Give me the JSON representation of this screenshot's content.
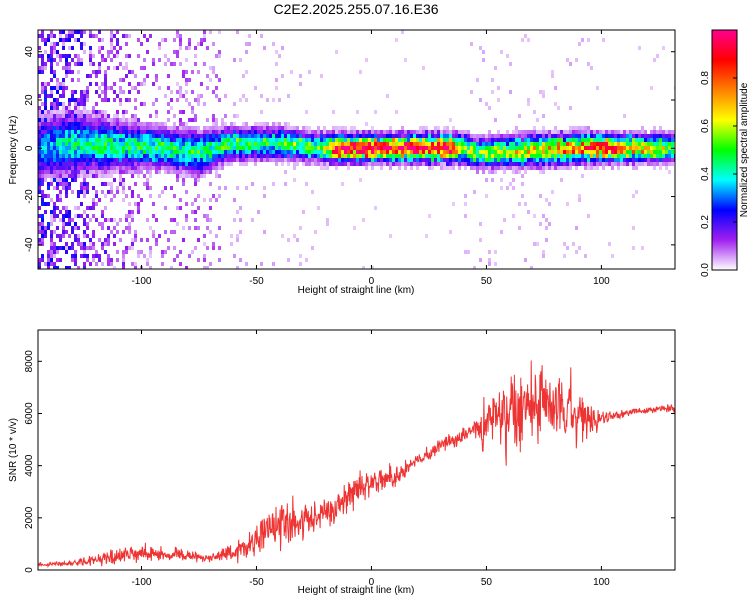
{
  "title": "C2E2.2025.255.07.16.E36",
  "chart_data": [
    {
      "type": "heatmap",
      "xlabel": "Height of straight line (km)",
      "ylabel": "Frequency (Hz)",
      "xlim": [
        -145,
        132
      ],
      "ylim": [
        -50,
        49
      ],
      "xticks": [
        -100,
        -50,
        0,
        50,
        100
      ],
      "yticks": [
        -40,
        -20,
        0,
        20,
        40
      ],
      "colorbar": {
        "label": "Normalized spectral amplitude",
        "range": [
          0,
          1
        ],
        "ticks": [
          0.0,
          0.2,
          0.4,
          0.6,
          0.8
        ],
        "colormap": [
          "#ffffff",
          "#a020f0",
          "#0000ff",
          "#00ffff",
          "#00ff00",
          "#ffff00",
          "#ff8000",
          "#ff0000",
          "#ff0090"
        ]
      },
      "ridge_profile": [
        {
          "x": -145,
          "center": 0,
          "peak": 0.3,
          "scatter": 1.0
        },
        {
          "x": -130,
          "center": 2,
          "peak": 0.42,
          "scatter": 0.9
        },
        {
          "x": -110,
          "center": 1,
          "peak": 0.45,
          "scatter": 0.55
        },
        {
          "x": -90,
          "center": 0,
          "peak": 0.45,
          "scatter": 0.35
        },
        {
          "x": -75,
          "center": -2,
          "peak": 0.45,
          "scatter": 0.45
        },
        {
          "x": -60,
          "center": 2,
          "peak": 0.48,
          "scatter": 0.15
        },
        {
          "x": -40,
          "center": 2,
          "peak": 0.5,
          "scatter": 0.1
        },
        {
          "x": -20,
          "center": 0,
          "peak": 0.55,
          "scatter": 0.05
        },
        {
          "x": -15,
          "center": 0,
          "peak": 0.95,
          "scatter": 0.02
        },
        {
          "x": 35,
          "center": 0,
          "peak": 0.97,
          "scatter": 0.02
        },
        {
          "x": 40,
          "center": 0,
          "peak": 0.6,
          "scatter": 0.08
        },
        {
          "x": 45,
          "center": -2,
          "peak": 0.55,
          "scatter": 0.1
        },
        {
          "x": 90,
          "center": 0,
          "peak": 0.75,
          "scatter": 0.1
        },
        {
          "x": 100,
          "center": 0,
          "peak": 0.9,
          "scatter": 0.03
        },
        {
          "x": 132,
          "center": 0,
          "peak": 0.55,
          "scatter": 0.03
        }
      ]
    },
    {
      "type": "line",
      "xlabel": "Height of straight line (km)",
      "ylabel": "SNR (10 * v/v)",
      "xlim": [
        -145,
        132
      ],
      "ylim": [
        0,
        9200
      ],
      "xticks": [
        -100,
        -50,
        0,
        50,
        100
      ],
      "yticks": [
        0,
        2000,
        4000,
        6000,
        8000
      ],
      "series": [
        {
          "color": "#ee3333",
          "x": [
            -145,
            -130,
            -120,
            -110,
            -100,
            -90,
            -80,
            -70,
            -60,
            -55,
            -50,
            -45,
            -40,
            -35,
            -30,
            -25,
            -20,
            -15,
            -10,
            -5,
            0,
            5,
            10,
            15,
            20,
            25,
            30,
            35,
            40,
            45,
            50,
            55,
            60,
            65,
            70,
            75,
            80,
            85,
            90,
            95,
            100,
            105,
            110,
            115,
            120,
            125,
            132
          ],
          "mean": [
            200,
            250,
            400,
            550,
            650,
            600,
            550,
            450,
            700,
            900,
            1300,
            1500,
            1700,
            1800,
            1900,
            2000,
            2200,
            2500,
            2800,
            3200,
            3300,
            3500,
            3600,
            3800,
            4200,
            4400,
            4800,
            5000,
            5200,
            5400,
            5600,
            5800,
            5900,
            6000,
            6100,
            6200,
            6200,
            6100,
            5900,
            5700,
            5800,
            5900,
            6000,
            6100,
            6100,
            6200,
            6200
          ],
          "spread": [
            80,
            120,
            250,
            350,
            400,
            350,
            250,
            200,
            400,
            600,
            800,
            1000,
            1200,
            1000,
            900,
            700,
            700,
            600,
            600,
            600,
            400,
            500,
            500,
            450,
            350,
            350,
            300,
            350,
            400,
            600,
            1200,
            1500,
            1800,
            1800,
            1700,
            1600,
            1500,
            1500,
            1200,
            800,
            300,
            200,
            150,
            150,
            150,
            150,
            150
          ]
        }
      ]
    }
  ]
}
